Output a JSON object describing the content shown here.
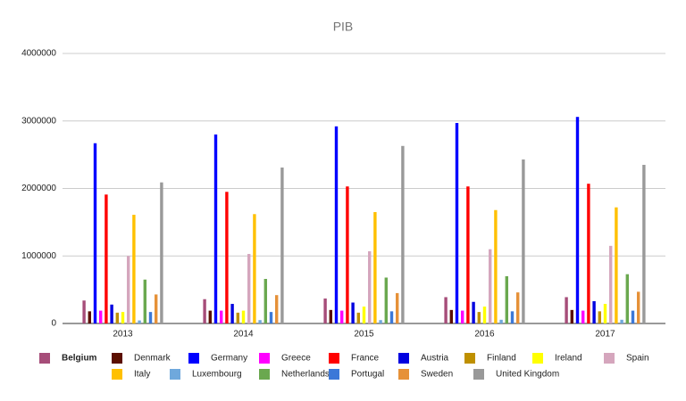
{
  "chart_data": {
    "type": "bar",
    "title": "PIB",
    "categories": [
      "2013",
      "2014",
      "2015",
      "2016",
      "2017"
    ],
    "ylim": [
      0,
      4000000
    ],
    "yticks": [
      0,
      1000000,
      2000000,
      3000000,
      4000000
    ],
    "grid": true,
    "series": [
      {
        "name": "Belgium",
        "color": "#a64d79",
        "values": [
          340000,
          360000,
          370000,
          390000,
          390000
        ]
      },
      {
        "name": "Denmark",
        "color": "#5b0f00",
        "values": [
          180000,
          190000,
          200000,
          200000,
          200000
        ]
      },
      {
        "name": "Germany",
        "color": "#0000ff",
        "values": [
          2670000,
          2800000,
          2920000,
          2970000,
          3060000
        ]
      },
      {
        "name": "Greece",
        "color": "#ff00ff",
        "values": [
          190000,
          190000,
          190000,
          190000,
          190000
        ]
      },
      {
        "name": "France",
        "color": "#ff0000",
        "values": [
          1910000,
          1950000,
          2030000,
          2030000,
          2070000
        ]
      },
      {
        "name": "Austria",
        "color": "#0000e0",
        "values": [
          280000,
          290000,
          310000,
          320000,
          330000
        ]
      },
      {
        "name": "Finland",
        "color": "#bf9000",
        "values": [
          160000,
          160000,
          160000,
          170000,
          180000
        ]
      },
      {
        "name": "Ireland",
        "color": "#ffff00",
        "values": [
          170000,
          190000,
          250000,
          250000,
          290000
        ]
      },
      {
        "name": "Spain",
        "color": "#d5a6bd",
        "values": [
          1000000,
          1030000,
          1070000,
          1100000,
          1150000
        ]
      },
      {
        "name": "Italy",
        "color": "#ffc000",
        "values": [
          1610000,
          1620000,
          1650000,
          1680000,
          1720000
        ]
      },
      {
        "name": "Luxembourg",
        "color": "#6fa8dc",
        "values": [
          45000,
          50000,
          50000,
          55000,
          55000
        ]
      },
      {
        "name": "Netherlands",
        "color": "#6aa84f",
        "values": [
          650000,
          660000,
          680000,
          700000,
          730000
        ]
      },
      {
        "name": "Portugal",
        "color": "#3c78d8",
        "values": [
          170000,
          170000,
          180000,
          180000,
          190000
        ]
      },
      {
        "name": "Sweden",
        "color": "#e69138",
        "values": [
          430000,
          420000,
          450000,
          460000,
          470000
        ]
      },
      {
        "name": "United Kingdom",
        "color": "#999999",
        "values": [
          2090000,
          2310000,
          2630000,
          2430000,
          2350000
        ]
      }
    ]
  }
}
